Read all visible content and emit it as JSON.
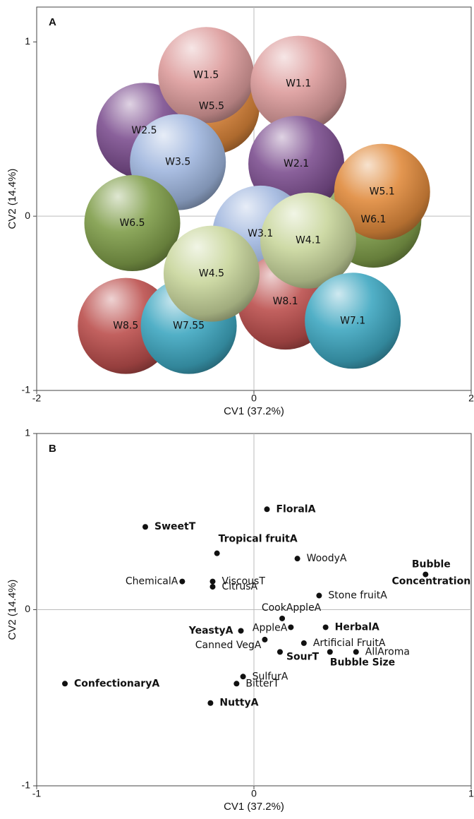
{
  "chart_data": [
    {
      "type": "bubble",
      "panel_label": "A",
      "xlabel": "CV1 (37.2%)",
      "ylabel": "CV2 (14.4%)",
      "xlim": [
        -2,
        2
      ],
      "ylim": [
        -1,
        1.2
      ],
      "xticks": [
        -2,
        0,
        2
      ],
      "yticks": [
        -1,
        0,
        1
      ],
      "points": [
        {
          "label": "W5.5",
          "x": -0.39,
          "y": 0.63,
          "color": "#d9843a"
        },
        {
          "label": "W2.5",
          "x": -1.01,
          "y": 0.49,
          "color": "#7d4f90"
        },
        {
          "label": "W1.5",
          "x": -0.44,
          "y": 0.81,
          "color": "#dc9c9c"
        },
        {
          "label": "W1.1",
          "x": 0.41,
          "y": 0.76,
          "color": "#dc9c9c"
        },
        {
          "label": "W3.5",
          "x": -0.7,
          "y": 0.31,
          "color": "#9fb6de"
        },
        {
          "label": "W2.1",
          "x": 0.39,
          "y": 0.3,
          "color": "#7d4f90"
        },
        {
          "label": "W6.1",
          "x": 1.1,
          "y": -0.02,
          "color": "#7f9d4a"
        },
        {
          "label": "W5.1",
          "x": 1.18,
          "y": 0.14,
          "color": "#e08a3c"
        },
        {
          "label": "W3.1",
          "x": 0.06,
          "y": -0.1,
          "color": "#9fb6de"
        },
        {
          "label": "W8.1",
          "x": 0.29,
          "y": -0.49,
          "color": "#bb4f4d"
        },
        {
          "label": "W4.1",
          "x": 0.5,
          "y": -0.14,
          "color": "#c8d69c"
        },
        {
          "label": "W7.1",
          "x": 0.91,
          "y": -0.6,
          "color": "#3fa7c1"
        },
        {
          "label": "W6.5",
          "x": -1.12,
          "y": -0.04,
          "color": "#7f9d4a"
        },
        {
          "label": "W8.5",
          "x": -1.18,
          "y": -0.63,
          "color": "#bb4f4d"
        },
        {
          "label": "W7.55",
          "x": -0.6,
          "y": -0.63,
          "color": "#3fa7c1"
        },
        {
          "label": "W4.5",
          "x": -0.39,
          "y": -0.33,
          "color": "#c8d69c"
        }
      ]
    },
    {
      "type": "scatter",
      "panel_label": "B",
      "xlabel": "CV1 (37.2%)",
      "ylabel": "CV2 (14.4%)",
      "xlim": [
        -1,
        1
      ],
      "ylim": [
        -1,
        1
      ],
      "xticks": [
        -1,
        0,
        1
      ],
      "yticks": [
        -1,
        0,
        1
      ],
      "color": "#111111",
      "points": [
        {
          "label": "FloralA",
          "x": 0.06,
          "y": 0.57,
          "bold": true
        },
        {
          "label": "SweetT",
          "x": -0.5,
          "y": 0.47,
          "bold": true
        },
        {
          "label": "Tropical fruitA",
          "x": -0.17,
          "y": 0.32,
          "bold": true
        },
        {
          "label": "WoodyA",
          "x": 0.2,
          "y": 0.29,
          "bold": false
        },
        {
          "label": "ChemicalA",
          "x": -0.33,
          "y": 0.16,
          "bold": false
        },
        {
          "label": "ViscousT",
          "x": -0.19,
          "y": 0.16,
          "bold": false
        },
        {
          "label": "CitrusA",
          "x": -0.19,
          "y": 0.13,
          "bold": false
        },
        {
          "label": "Bubble Concentration",
          "x": 0.79,
          "y": 0.2,
          "bold": true
        },
        {
          "label": "Stone fruitA",
          "x": 0.3,
          "y": 0.08,
          "bold": false
        },
        {
          "label": "CookAppleA",
          "x": 0.13,
          "y": -0.05,
          "bold": false
        },
        {
          "label": "YeastyA",
          "x": -0.06,
          "y": -0.12,
          "bold": true
        },
        {
          "label": "AppleA",
          "x": 0.17,
          "y": -0.1,
          "bold": false
        },
        {
          "label": "HerbalA",
          "x": 0.33,
          "y": -0.1,
          "bold": true
        },
        {
          "label": "Canned VegA",
          "x": 0.05,
          "y": -0.17,
          "bold": false
        },
        {
          "label": "Artificial FruitA",
          "x": 0.23,
          "y": -0.19,
          "bold": false
        },
        {
          "label": "SourT",
          "x": 0.12,
          "y": -0.24,
          "bold": true
        },
        {
          "label": "Bubble Size",
          "x": 0.35,
          "y": -0.24,
          "bold": true
        },
        {
          "label": "AllAroma",
          "x": 0.47,
          "y": -0.24,
          "bold": false
        },
        {
          "label": "SulfurA",
          "x": -0.05,
          "y": -0.38,
          "bold": false
        },
        {
          "label": "BitterT",
          "x": -0.08,
          "y": -0.42,
          "bold": false
        },
        {
          "label": "ConfectionaryA",
          "x": -0.87,
          "y": -0.42,
          "bold": true
        },
        {
          "label": "NuttyA",
          "x": -0.2,
          "y": -0.53,
          "bold": true
        }
      ]
    }
  ]
}
